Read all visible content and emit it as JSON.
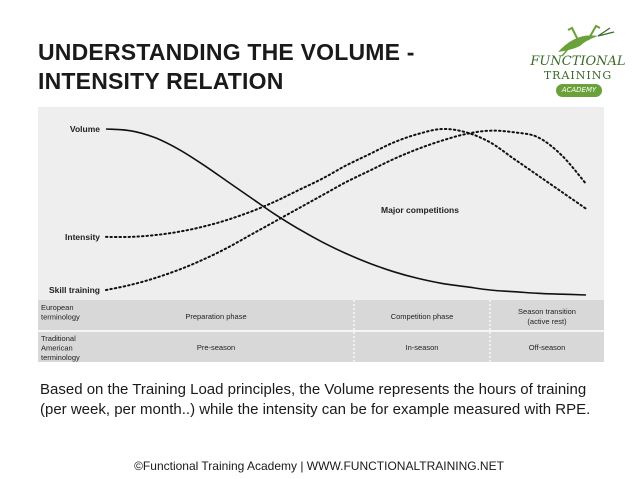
{
  "slide": {
    "title_line1": "UNDERSTANDING THE VOLUME -",
    "title_line2": "INTENSITY RELATION",
    "caption": "Based on the Training Load principles, the Volume represents the hours of training (per week, per month..) while the intensity can be for example measured with RPE.",
    "footer": "©Functional Training Academy | WWW.FUNCTIONALTRAINING.NET"
  },
  "logo": {
    "line1": "FUNCTIONAL",
    "line2": "TRAINING",
    "badge": "ACADEMY",
    "icon": "grasshopper-icon",
    "color": "#6aa13a"
  },
  "chart_data": {
    "type": "line",
    "series": [
      {
        "name": "Volume",
        "style": "solid",
        "x": [
          0,
          5,
          10,
          15,
          20,
          25,
          30,
          35,
          40,
          45,
          50,
          55,
          60,
          65,
          70,
          75,
          80,
          85,
          90,
          95,
          100
        ],
        "values": [
          100,
          99,
          95,
          88,
          79,
          69,
          59,
          49,
          40,
          32,
          25,
          19,
          14,
          10,
          7,
          5,
          3,
          2,
          1,
          0.5,
          0
        ]
      },
      {
        "name": "Intensity",
        "style": "dotted",
        "x": [
          0,
          5,
          10,
          15,
          20,
          25,
          30,
          35,
          40,
          45,
          50,
          55,
          60,
          65,
          70,
          75,
          80,
          85,
          90,
          95,
          100
        ],
        "values": [
          35,
          35,
          36,
          38,
          41,
          45,
          50,
          56,
          63,
          70,
          78,
          85,
          92,
          97,
          100,
          98,
          92,
          82,
          72,
          62,
          52
        ]
      },
      {
        "name": "Skill training",
        "style": "dotted",
        "x": [
          0,
          5,
          10,
          15,
          20,
          25,
          30,
          35,
          40,
          45,
          50,
          55,
          60,
          65,
          70,
          75,
          80,
          85,
          90,
          95,
          100
        ],
        "values": [
          3,
          6,
          10,
          15,
          21,
          28,
          36,
          44,
          52,
          60,
          68,
          75,
          82,
          88,
          93,
          97,
          99,
          98,
          95,
          84,
          67
        ]
      }
    ],
    "annotations": [
      "Major competitions"
    ],
    "table": {
      "rows": [
        {
          "label": "European terminology",
          "cells": [
            "Preparation phase",
            "Competition phase",
            "Season transition (active rest)"
          ]
        },
        {
          "label": "Traditional American terminology",
          "cells": [
            "Pre-season",
            "In-season",
            "Off-season"
          ]
        }
      ]
    },
    "grid": false,
    "legend": "inline-left"
  }
}
